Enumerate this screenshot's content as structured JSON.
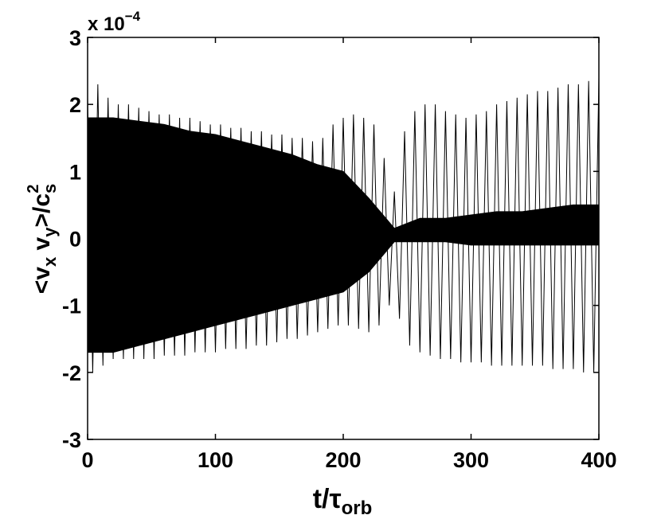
{
  "chart_data": {
    "type": "line",
    "multiplier": [
      "x 10",
      "−4"
    ],
    "xlabel": [
      "t/τ",
      "orb"
    ],
    "ylabel": [
      "<v",
      "x",
      " v",
      "y",
      ">/c",
      "s",
      "2"
    ],
    "xlim": [
      0,
      400
    ],
    "xticks": [
      0,
      100,
      200,
      300,
      400
    ],
    "ylim": [
      -3,
      3
    ],
    "yticks": [
      -3,
      -2,
      -1,
      0,
      1,
      2,
      3
    ],
    "series": [
      {
        "color": "#000000",
        "x": [
          0,
          4,
          8,
          12,
          16,
          20,
          24,
          28,
          32,
          36,
          40,
          44,
          48,
          52,
          56,
          60,
          64,
          68,
          72,
          76,
          80,
          84,
          88,
          92,
          96,
          100,
          104,
          108,
          112,
          116,
          120,
          124,
          128,
          132,
          136,
          140,
          144,
          148,
          152,
          156,
          160,
          164,
          168,
          172,
          176,
          180,
          184,
          188,
          192,
          196,
          200,
          204,
          208,
          212,
          216,
          220,
          224,
          228,
          232,
          236,
          240,
          244,
          248,
          252,
          256,
          260,
          264,
          268,
          272,
          276,
          280,
          284,
          288,
          292,
          296,
          300,
          304,
          308,
          312,
          316,
          320,
          324,
          328,
          332,
          336,
          340,
          344,
          348,
          352,
          356,
          360,
          364,
          368,
          372,
          376,
          380,
          384,
          388,
          392,
          396,
          400
        ],
        "values": [
          2.1,
          -2.0,
          2.3,
          -1.9,
          2.1,
          -1.8,
          2.0,
          -1.8,
          2.0,
          -1.8,
          1.95,
          -1.8,
          1.9,
          -1.8,
          1.85,
          -1.75,
          1.85,
          -1.75,
          1.8,
          -1.75,
          1.8,
          -1.7,
          1.75,
          -1.7,
          1.7,
          -1.7,
          1.7,
          -1.65,
          1.65,
          -1.65,
          1.65,
          -1.65,
          1.6,
          -1.6,
          1.6,
          -1.6,
          1.55,
          -1.55,
          1.55,
          -1.5,
          1.5,
          -1.5,
          1.5,
          -1.45,
          1.45,
          -1.4,
          1.5,
          -1.35,
          1.7,
          -1.3,
          1.8,
          -1.3,
          1.85,
          -1.35,
          1.8,
          -1.4,
          1.7,
          -1.3,
          1.2,
          -1.0,
          0.7,
          -1.2,
          1.6,
          -1.6,
          1.9,
          -1.7,
          2.0,
          -1.75,
          2.0,
          -1.8,
          1.9,
          -1.8,
          1.85,
          -1.85,
          1.8,
          -1.85,
          1.85,
          -1.85,
          1.9,
          -1.9,
          2.0,
          -1.9,
          2.05,
          -1.9,
          2.1,
          -1.9,
          2.15,
          -1.9,
          2.2,
          -1.9,
          2.2,
          -1.95,
          2.25,
          -1.95,
          2.3,
          -1.95,
          2.3,
          -2.0,
          2.35,
          -2.0,
          2.4
        ]
      },
      {
        "color": "#000000",
        "x": [
          0,
          20,
          40,
          60,
          80,
          100,
          120,
          140,
          160,
          180,
          200,
          220,
          240,
          260,
          280,
          300,
          320,
          340,
          360,
          380,
          400
        ],
        "values": [
          1.8,
          1.8,
          1.75,
          1.7,
          1.6,
          1.55,
          1.45,
          1.35,
          1.25,
          1.1,
          1.0,
          0.6,
          0.15,
          0.3,
          0.3,
          0.35,
          0.4,
          0.4,
          0.45,
          0.5,
          0.5
        ],
        "low": [
          -1.7,
          -1.7,
          -1.6,
          -1.5,
          -1.4,
          -1.3,
          -1.2,
          -1.1,
          -1.0,
          -0.9,
          -0.8,
          -0.5,
          -0.05,
          -0.05,
          -0.05,
          -0.1,
          -0.1,
          -0.1,
          -0.1,
          -0.1,
          -0.1
        ]
      }
    ]
  }
}
